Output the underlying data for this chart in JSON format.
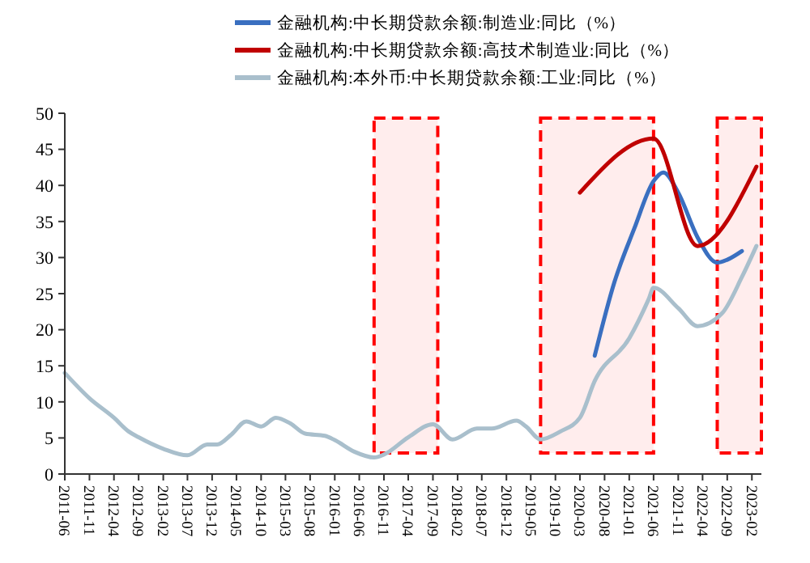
{
  "chart_data": {
    "type": "line",
    "legend": "top",
    "grid": false,
    "xlim": [
      "2011-06",
      "2023-04"
    ],
    "xticks": [
      {
        "value": "2011-06",
        "label": "2011-06"
      },
      {
        "value": "2011-11",
        "label": "2011-11"
      },
      {
        "value": "2012-04",
        "label": "2012-04"
      },
      {
        "value": "2012-09",
        "label": "2012-09"
      },
      {
        "value": "2013-02",
        "label": "2013-02"
      },
      {
        "value": "2013-07",
        "label": "2013-07"
      },
      {
        "value": "2013-12",
        "label": "2013-12"
      },
      {
        "value": "2014-05",
        "label": "2014-05"
      },
      {
        "value": "2014-10",
        "label": "2014-10"
      },
      {
        "value": "2015-03",
        "label": "2015-03"
      },
      {
        "value": "2015-08",
        "label": "2015-08"
      },
      {
        "value": "2016-01",
        "label": "2016-01"
      },
      {
        "value": "2016-06",
        "label": "2016-06"
      },
      {
        "value": "2016-11",
        "label": "2016-11"
      },
      {
        "value": "2017-04",
        "label": "2017-04"
      },
      {
        "value": "2017-09",
        "label": "2017-09"
      },
      {
        "value": "2018-02",
        "label": "2018-02"
      },
      {
        "value": "2018-07",
        "label": "2018-07"
      },
      {
        "value": "2018-12",
        "label": "2018-12"
      },
      {
        "value": "2019-05",
        "label": "2019-05"
      },
      {
        "value": "2019-10",
        "label": "2019-10"
      },
      {
        "value": "2020-03",
        "label": "2020-03"
      },
      {
        "value": "2020-08",
        "label": "2020-08"
      },
      {
        "value": "2021-01",
        "label": "2021-01"
      },
      {
        "value": "2021-06",
        "label": "2021-06"
      },
      {
        "value": "2021-11",
        "label": "2021-11"
      },
      {
        "value": "2022-04",
        "label": "2022-04"
      },
      {
        "value": "2022-09",
        "label": "2022-09"
      },
      {
        "value": "2023-02",
        "label": "2023-02"
      }
    ],
    "ylim": [
      0,
      50
    ],
    "yticks": [
      0,
      5,
      10,
      15,
      20,
      25,
      30,
      35,
      40,
      45,
      50
    ],
    "bands": [
      {
        "axis": "x",
        "from": "2016-09",
        "to": "2017-10",
        "color": "#ff0000"
      },
      {
        "axis": "x",
        "from": "2019-07",
        "to": "2021-06",
        "color": "#ff0000"
      },
      {
        "axis": "x",
        "from": "2022-07",
        "to": "2023-04",
        "color": "#ff0000"
      }
    ],
    "series": [
      {
        "name": "金融机构:中长期贷款余额:制造业:同比（%）",
        "color": "#3a6fc0",
        "x": [
          "2020-06",
          "2020-10",
          "2021-02",
          "2021-06",
          "2021-08",
          "2021-11",
          "2022-03",
          "2022-07",
          "2022-09",
          "2022-12"
        ],
        "values": [
          16.4,
          26.6,
          34,
          40.6,
          41.8,
          39,
          32.8,
          29.3,
          29.7,
          30.9
        ]
      },
      {
        "name": "金融机构:中长期贷款余额:高技术制造业:同比（%）",
        "color": "#c00000",
        "x": [
          "2020-03",
          "2021-06",
          "2022-03",
          "2023-03"
        ],
        "values": [
          39,
          46.5,
          31.6,
          42.6
        ]
      },
      {
        "name": "金融机构:本外币:中长期贷款余额:工业:同比（%）",
        "color": "#a9bfcc",
        "x": [
          "2011-06",
          "2011-11",
          "2012-04",
          "2012-07",
          "2012-09",
          "2013-02",
          "2013-07",
          "2013-11",
          "2014-01",
          "2014-04",
          "2014-07",
          "2014-10",
          "2015-01",
          "2015-04",
          "2015-07",
          "2015-11",
          "2016-01",
          "2016-05",
          "2016-09",
          "2016-11",
          "2017-04",
          "2017-09",
          "2018-01",
          "2018-06",
          "2018-09",
          "2019-02",
          "2019-04",
          "2019-07",
          "2019-11",
          "2020-03",
          "2020-06",
          "2021-01",
          "2021-05",
          "2021-06",
          "2021-11",
          "2022-03",
          "2022-08",
          "2022-12",
          "2023-03"
        ],
        "values": [
          14,
          10.5,
          7.8,
          5.9,
          5.1,
          3.5,
          2.6,
          4.1,
          4.1,
          5.5,
          7.3,
          6.6,
          7.8,
          7,
          5.6,
          5.3,
          4.7,
          3.1,
          2.3,
          2.7,
          5.1,
          6.9,
          4.8,
          6.3,
          6.3,
          7.4,
          6.6,
          4.8,
          5.9,
          7.8,
          12.9,
          18.8,
          24.2,
          25.8,
          23,
          20.5,
          22.3,
          27.3,
          31.6
        ]
      }
    ]
  }
}
